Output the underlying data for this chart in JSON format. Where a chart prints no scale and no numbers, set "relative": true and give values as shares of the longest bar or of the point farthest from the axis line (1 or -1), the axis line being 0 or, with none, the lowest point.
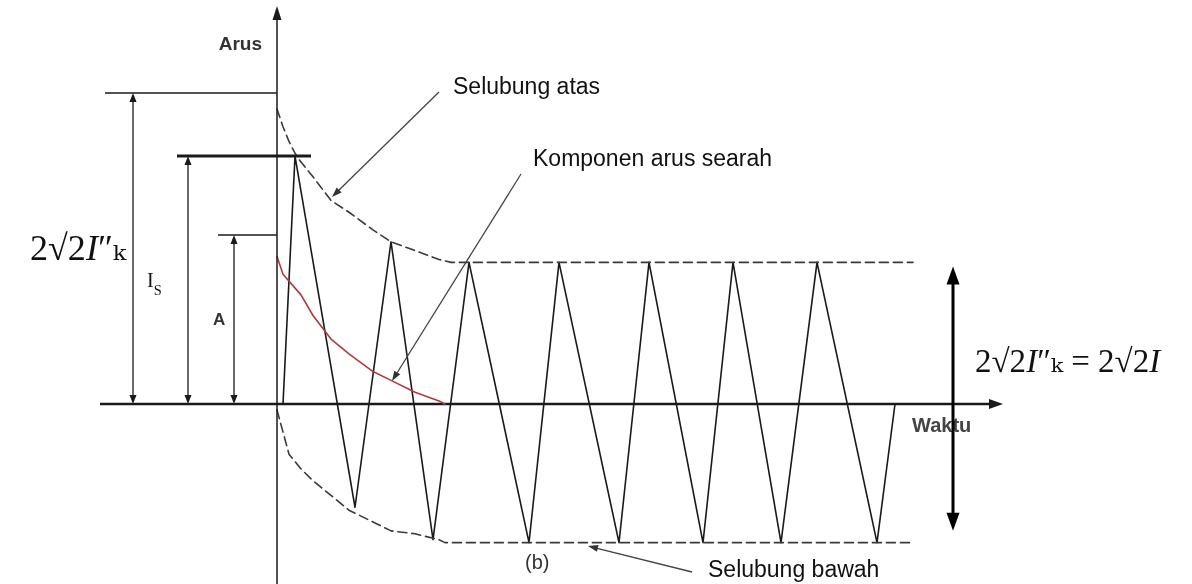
{
  "chart_data": {
    "type": "line",
    "relative": true,
    "xlabel": "Waktu",
    "ylabel": "Arus",
    "marker": "none",
    "line_style": "solid",
    "categories": [
      null,
      null,
      null,
      null,
      null,
      null,
      null,
      null,
      null,
      null,
      null,
      null,
      null,
      null,
      null,
      null,
      null,
      null,
      null,
      null,
      null,
      null,
      null,
      null,
      null,
      null,
      null,
      null,
      null,
      null,
      null,
      null,
      null,
      null,
      null,
      null,
      null,
      null,
      null,
      null,
      null,
      null,
      null,
      null,
      null,
      null,
      null,
      null,
      null,
      null,
      null,
      null,
      null,
      null,
      null,
      null,
      null,
      null,
      null,
      null,
      null,
      null,
      null,
      null,
      null,
      null,
      null,
      null,
      null,
      null,
      null,
      null,
      null,
      null,
      null,
      null,
      null,
      null,
      null,
      null,
      null,
      null,
      null,
      null,
      null,
      null,
      null,
      null,
      null,
      null,
      null,
      null,
      null,
      null,
      null,
      null,
      null,
      null,
      null,
      null,
      null,
      null,
      null,
      null,
      null,
      null,
      null,
      null,
      null,
      null,
      null,
      null,
      null,
      null,
      null,
      null,
      null,
      null,
      null,
      null,
      null
    ],
    "series": [
      {
        "color": "#1a1a1a",
        "values": [
          null,
          0,
          null,
          0.84,
          null,
          null,
          null,
          null,
          null,
          null,
          null,
          null,
          null,
          -0.35,
          null,
          null,
          null,
          null,
          null,
          0.55,
          null,
          null,
          null,
          null,
          null,
          null,
          -0.46,
          null,
          null,
          null,
          null,
          null,
          0.48,
          null,
          null,
          null,
          null,
          null,
          null,
          null,
          null,
          null,
          -0.47,
          null,
          null,
          null,
          null,
          0.48,
          null,
          null,
          null,
          null,
          null,
          null,
          null,
          null,
          null,
          -0.47,
          null,
          null,
          null,
          null,
          0.48,
          null,
          null,
          null,
          null,
          null,
          null,
          null,
          null,
          -0.47,
          null,
          null,
          null,
          null,
          0.48,
          null,
          null,
          null,
          null,
          null,
          null,
          null,
          -0.47,
          null,
          null,
          null,
          null,
          null,
          0.48,
          null,
          null,
          null,
          null,
          null,
          null,
          null,
          null,
          null,
          -0.47,
          null,
          null,
          0,
          null,
          null,
          null,
          null,
          null,
          null,
          null,
          null,
          null,
          null,
          null,
          null,
          null,
          null,
          null,
          null,
          null
        ]
      },
      {
        "color": "#3a3a3a",
        "line_style": "dashed",
        "values": [
          1,
          0.94,
          0.89,
          0.85,
          0.82,
          null,
          0.77,
          null,
          null,
          0.69,
          null,
          null,
          0.65,
          null,
          null,
          null,
          0.59,
          null,
          null,
          0.55,
          null,
          null,
          null,
          0.52,
          null,
          null,
          null,
          0.49,
          null,
          0.48,
          null,
          null,
          null,
          null,
          null,
          null,
          null,
          null,
          null,
          null,
          null,
          null,
          null,
          null,
          null,
          null,
          null,
          null,
          null,
          null,
          null,
          null,
          null,
          null,
          null,
          null,
          null,
          null,
          null,
          null,
          null,
          null,
          null,
          null,
          null,
          null,
          null,
          null,
          null,
          null,
          null,
          null,
          null,
          null,
          null,
          null,
          null,
          null,
          null,
          null,
          null,
          null,
          null,
          null,
          null,
          null,
          null,
          null,
          null,
          null,
          null,
          null,
          null,
          null,
          null,
          null,
          null,
          null,
          null,
          null,
          null,
          null,
          null,
          null,
          null,
          null,
          0.48,
          null,
          null,
          null,
          null,
          null,
          null,
          null,
          null,
          null,
          null,
          null,
          null,
          null,
          null
        ]
      },
      {
        "color": "#3a3a3a",
        "line_style": "dashed",
        "values": [
          -0.02,
          null,
          -0.17,
          null,
          -0.22,
          null,
          -0.26,
          null,
          null,
          -0.31,
          null,
          null,
          -0.36,
          null,
          null,
          null,
          -0.4,
          null,
          null,
          -0.43,
          null,
          null,
          null,
          -0.44,
          null,
          null,
          null,
          -0.46,
          -0.47,
          null,
          null,
          null,
          null,
          null,
          null,
          null,
          null,
          null,
          null,
          null,
          null,
          null,
          null,
          null,
          null,
          null,
          null,
          null,
          null,
          null,
          null,
          null,
          null,
          null,
          null,
          null,
          null,
          null,
          null,
          null,
          null,
          null,
          null,
          null,
          null,
          null,
          null,
          null,
          null,
          null,
          null,
          null,
          null,
          null,
          null,
          null,
          null,
          null,
          null,
          null,
          null,
          null,
          null,
          null,
          null,
          null,
          null,
          null,
          null,
          null,
          null,
          null,
          null,
          null,
          null,
          null,
          null,
          null,
          null,
          null,
          null,
          null,
          null,
          null,
          null,
          null,
          -0.47,
          null,
          null,
          null,
          null,
          null,
          null,
          null,
          null,
          null,
          null,
          null,
          null,
          null,
          null
        ]
      },
      {
        "color": "#b03a3a",
        "values": [
          0.5,
          0.44,
          null,
          null,
          0.37,
          null,
          0.3,
          null,
          null,
          0.22,
          null,
          null,
          0.17,
          null,
          null,
          null,
          0.11,
          null,
          null,
          0.08,
          null,
          null,
          null,
          0.04,
          null,
          null,
          null,
          0.01,
          0,
          null,
          null,
          null,
          null,
          null,
          null,
          null,
          null,
          null,
          null,
          null,
          null,
          null,
          null,
          null,
          null,
          null,
          null,
          null,
          null,
          null,
          null,
          null,
          null,
          null,
          null,
          null,
          null,
          null,
          null,
          null,
          null,
          null,
          null,
          null,
          null,
          null,
          null,
          null,
          null,
          null,
          null,
          null,
          null,
          null,
          null,
          null,
          null,
          null,
          null,
          null,
          null,
          null,
          null,
          null,
          null,
          null,
          null,
          null,
          null,
          null,
          null,
          null,
          null,
          null,
          null,
          null,
          null,
          null,
          null,
          null,
          null,
          null,
          null,
          null,
          null,
          null,
          null,
          null,
          null,
          null,
          null,
          null,
          null,
          null,
          null,
          null,
          null,
          null,
          null,
          null,
          null
        ]
      }
    ],
    "annotations": [
      "Selubung atas",
      "Komponen arus searah",
      "Selubung bawah",
      "(b)",
      "2√2I″ₖ",
      "I$_{S}$",
      "A",
      "2√2I″ₖ = 2√2I"
    ]
  }
}
